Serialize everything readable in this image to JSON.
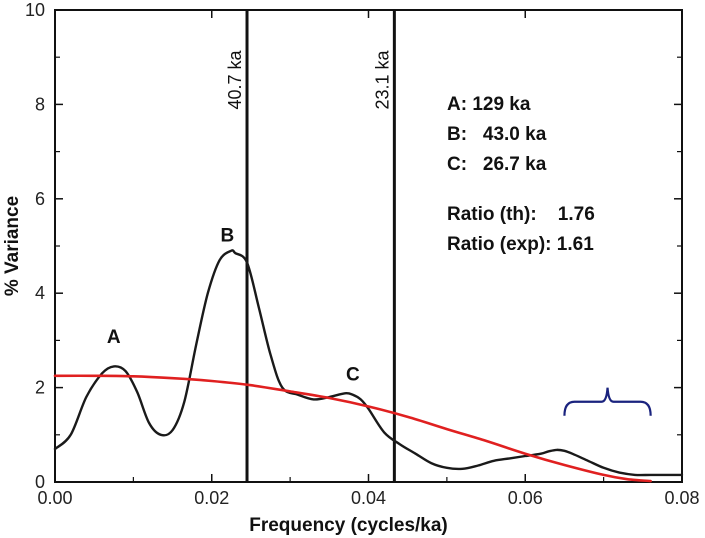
{
  "chart_data": {
    "type": "line",
    "xlabel": "Frequency (cycles/ka)",
    "ylabel": "% Variance",
    "xlim": [
      0,
      0.08
    ],
    "ylim": [
      0,
      10
    ],
    "x_ticks": [
      0,
      0.02,
      0.04,
      0.06,
      0.08
    ],
    "x_tick_labels": [
      "0.00",
      "0.02",
      "0.04",
      "0.06",
      "0.08"
    ],
    "y_ticks": [
      0,
      2,
      4,
      6,
      8,
      10
    ],
    "y_tick_labels": [
      "0",
      "2",
      "4",
      "6",
      "8",
      "10"
    ],
    "series": [
      {
        "color": "#1a1a1a",
        "x": [
          0,
          0.002,
          0.004,
          0.006,
          0.0075,
          0.009,
          0.0105,
          0.012,
          0.0135,
          0.015,
          0.0165,
          0.018,
          0.0195,
          0.021,
          0.0225,
          0.023,
          0.0245,
          0.026,
          0.0275,
          0.029,
          0.031,
          0.033,
          0.035,
          0.037,
          0.038,
          0.039,
          0.04,
          0.042,
          0.044,
          0.046,
          0.048,
          0.05,
          0.052,
          0.054,
          0.056,
          0.058,
          0.06,
          0.062,
          0.063,
          0.064,
          0.065,
          0.066,
          0.068,
          0.07,
          0.072,
          0.074,
          0.076,
          0.078,
          0.08
        ],
        "y": [
          0.7,
          1.0,
          1.8,
          2.3,
          2.45,
          2.35,
          1.9,
          1.25,
          1.0,
          1.1,
          1.7,
          2.9,
          4.0,
          4.7,
          4.9,
          4.85,
          4.65,
          3.7,
          2.7,
          2.0,
          1.85,
          1.75,
          1.8,
          1.88,
          1.85,
          1.75,
          1.55,
          1.05,
          0.8,
          0.6,
          0.4,
          0.3,
          0.28,
          0.35,
          0.45,
          0.5,
          0.55,
          0.6,
          0.65,
          0.68,
          0.66,
          0.6,
          0.45,
          0.3,
          0.2,
          0.15,
          0.15,
          0.15,
          0.15
        ]
      },
      {
        "color": "#e02020",
        "x": [
          0,
          0.005,
          0.01,
          0.015,
          0.02,
          0.025,
          0.03,
          0.035,
          0.04,
          0.045,
          0.05,
          0.055,
          0.06,
          0.065,
          0.07,
          0.073,
          0.076
        ],
        "y": [
          2.25,
          2.25,
          2.24,
          2.2,
          2.14,
          2.05,
          1.92,
          1.78,
          1.6,
          1.38,
          1.12,
          0.87,
          0.6,
          0.36,
          0.15,
          0.06,
          0.02
        ]
      }
    ],
    "vertical_lines": [
      {
        "x": 0.0245,
        "label": "40.7 ka"
      },
      {
        "x": 0.0433,
        "label": "23.1 ka"
      }
    ],
    "peak_labels": [
      {
        "text": "A",
        "x": 0.0075,
        "y": 2.95
      },
      {
        "text": "B",
        "x": 0.022,
        "y": 5.1
      },
      {
        "text": "C",
        "x": 0.038,
        "y": 2.15
      }
    ],
    "info_lines": [
      "A: 129 ka",
      "B:   43.0 ka",
      "C:   26.7 ka",
      "Ratio (th):    1.76",
      "Ratio (exp): 1.61"
    ],
    "brace": {
      "x_start": 0.065,
      "x_end": 0.076,
      "y": 1.7,
      "color": "#1a237e"
    },
    "grid": false
  }
}
